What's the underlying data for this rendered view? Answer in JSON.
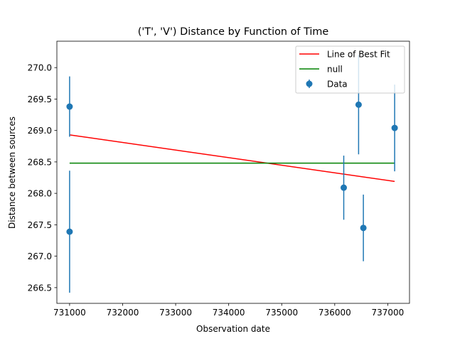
{
  "chart_data": {
    "type": "scatter",
    "title": "('T', 'V') Distance by Function of Time",
    "xlabel": "Observation date",
    "ylabel": "Distance between sources",
    "xlim": [
      730760,
      737410
    ],
    "ylim": [
      266.25,
      270.42
    ],
    "xticks": [
      731000,
      732000,
      733000,
      734000,
      735000,
      736000,
      737000
    ],
    "yticks": [
      266.5,
      267.0,
      267.5,
      268.0,
      268.5,
      269.0,
      269.5,
      270.0
    ],
    "xtick_labels": [
      "731000",
      "732000",
      "733000",
      "734000",
      "735000",
      "736000",
      "737000"
    ],
    "ytick_labels": [
      "266.5",
      "267.0",
      "267.5",
      "268.0",
      "268.5",
      "269.0",
      "269.5",
      "270.0"
    ],
    "grid": false,
    "legend_position": "top-right",
    "series": [
      {
        "name": "Line of Best Fit",
        "kind": "line",
        "color": "#ff0000",
        "x": [
          731000,
          737130
        ],
        "y": [
          268.93,
          268.19
        ]
      },
      {
        "name": "null",
        "kind": "line",
        "color": "#008000",
        "x": [
          731000,
          737130
        ],
        "y": [
          268.48,
          268.48
        ]
      },
      {
        "name": "Data",
        "kind": "errorbar",
        "color": "#1f77b4",
        "x": [
          731000,
          731000,
          736170,
          736450,
          736540,
          737130
        ],
        "y": [
          269.38,
          267.39,
          268.09,
          269.41,
          267.45,
          269.04
        ],
        "yerr": [
          0.48,
          0.97,
          0.51,
          0.79,
          0.53,
          0.69
        ]
      }
    ]
  }
}
